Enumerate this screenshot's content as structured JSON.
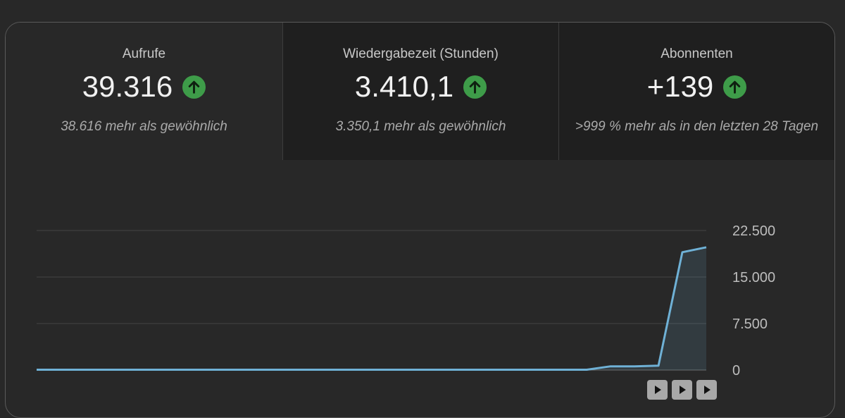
{
  "stats": [
    {
      "label": "Aufrufe",
      "value": "39.316",
      "sub": "38.616 mehr als gewöhnlich",
      "trend": "up-arrow-icon"
    },
    {
      "label": "Wiedergabezeit (Stunden)",
      "value": "3.410,1",
      "sub": "3.350,1 mehr als gewöhnlich",
      "trend": "up-arrow-icon"
    },
    {
      "label": "Abonnenten",
      "value": "+139",
      "sub": ">999 % mehr als in den letzten 28 Tagen",
      "trend": "up-arrow-icon"
    }
  ],
  "colors": {
    "background": "#282828",
    "selected_tab": "#282828",
    "unselected_tab": "#1f1f1f",
    "line": "#6fb1d6",
    "trend_up": "#3e9c49"
  },
  "chart_data": {
    "type": "area",
    "x": [
      1,
      2,
      3,
      4,
      5,
      6,
      7,
      8,
      9,
      10,
      11,
      12,
      13,
      14,
      15,
      16,
      17,
      18,
      19,
      20,
      21,
      22,
      23,
      24,
      25,
      26,
      27,
      28,
      29
    ],
    "series": [
      {
        "values": [
          60,
          60,
          60,
          60,
          60,
          60,
          60,
          60,
          60,
          60,
          60,
          60,
          60,
          60,
          60,
          60,
          60,
          60,
          60,
          60,
          60,
          60,
          60,
          60,
          600,
          600,
          700,
          19000,
          19800
        ]
      }
    ],
    "ylim": [
      0,
      22500
    ],
    "yticks": [
      "0",
      "7.500",
      "15.000",
      "22.500"
    ],
    "ytick_values": [
      0,
      7500,
      15000,
      22500
    ],
    "grid": true,
    "legend": "none"
  },
  "nav_buttons": [
    "play-icon",
    "play-icon",
    "play-icon"
  ]
}
